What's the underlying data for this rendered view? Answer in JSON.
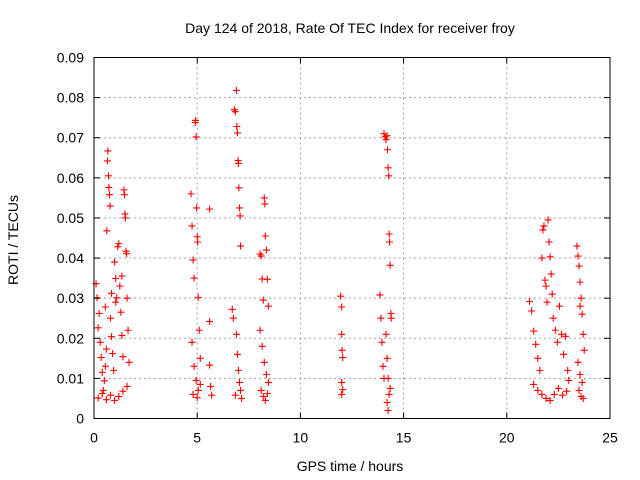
{
  "chart_data": {
    "type": "scatter",
    "title": "Day 124 of 2018, Rate Of TEC Index for receiver froy",
    "xlabel": "GPS time / hours",
    "ylabel": "ROTI / TECUs",
    "xlim": [
      0,
      25
    ],
    "ylim": [
      0,
      0.09
    ],
    "xticks": [
      0,
      5,
      10,
      15,
      20,
      25
    ],
    "xtick_labels": [
      "0",
      "5",
      "10",
      "15",
      "20",
      "25"
    ],
    "yticks": [
      0,
      0.01,
      0.02,
      0.03,
      0.04,
      0.05,
      0.06,
      0.07,
      0.08,
      0.09
    ],
    "ytick_labels": [
      "0",
      "0.01",
      "0.02",
      "0.03",
      "0.04",
      "0.05",
      "0.06",
      "0.07",
      "0.08",
      "0.09"
    ],
    "grid": true,
    "marker": "+",
    "color": "#ff0000",
    "series": [
      {
        "name": "ROTI",
        "points": [
          [
            0.1,
            0.0336
          ],
          [
            0.15,
            0.0301
          ],
          [
            0.2,
            0.0226
          ],
          [
            0.3,
            0.019
          ],
          [
            0.35,
            0.0152
          ],
          [
            0.4,
            0.0115
          ],
          [
            0.45,
            0.007
          ],
          [
            0.5,
            0.0094
          ],
          [
            0.55,
            0.013
          ],
          [
            0.6,
            0.0173
          ],
          [
            0.62,
            0.0468
          ],
          [
            0.65,
            0.0642
          ],
          [
            0.67,
            0.0667
          ],
          [
            0.7,
            0.0605
          ],
          [
            0.72,
            0.0576
          ],
          [
            0.75,
            0.0558
          ],
          [
            0.78,
            0.053
          ],
          [
            0.8,
            0.025
          ],
          [
            0.85,
            0.0204
          ],
          [
            0.9,
            0.0162
          ],
          [
            0.95,
            0.012
          ],
          [
            1.0,
            0.039
          ],
          [
            1.05,
            0.0349
          ],
          [
            1.1,
            0.0301
          ],
          [
            1.15,
            0.0428
          ],
          [
            1.2,
            0.0436
          ],
          [
            1.25,
            0.033
          ],
          [
            1.3,
            0.0265
          ],
          [
            1.35,
            0.0207
          ],
          [
            1.4,
            0.0154
          ],
          [
            1.45,
            0.057
          ],
          [
            1.48,
            0.0558
          ],
          [
            1.5,
            0.051
          ],
          [
            1.52,
            0.05
          ],
          [
            1.55,
            0.0417
          ],
          [
            1.58,
            0.0411
          ],
          [
            1.6,
            0.03
          ],
          [
            1.65,
            0.022
          ],
          [
            1.7,
            0.014
          ],
          [
            0.2,
            0.0051
          ],
          [
            0.4,
            0.0062
          ],
          [
            0.6,
            0.0047
          ],
          [
            0.8,
            0.0058
          ],
          [
            1.0,
            0.0045
          ],
          [
            1.2,
            0.0055
          ],
          [
            1.4,
            0.0068
          ],
          [
            1.6,
            0.008
          ],
          [
            0.25,
            0.0262
          ],
          [
            0.55,
            0.0278
          ],
          [
            0.85,
            0.0312
          ],
          [
            1.05,
            0.029
          ],
          [
            1.35,
            0.0355
          ],
          [
            4.7,
            0.056
          ],
          [
            4.75,
            0.048
          ],
          [
            4.8,
            0.0395
          ],
          [
            4.85,
            0.035
          ],
          [
            4.9,
            0.0738
          ],
          [
            4.92,
            0.0743
          ],
          [
            4.95,
            0.0702
          ],
          [
            4.97,
            0.0525
          ],
          [
            5.0,
            0.0453
          ],
          [
            5.02,
            0.044
          ],
          [
            5.05,
            0.0302
          ],
          [
            5.1,
            0.022
          ],
          [
            5.15,
            0.015
          ],
          [
            4.75,
            0.019
          ],
          [
            4.85,
            0.013
          ],
          [
            4.95,
            0.0095
          ],
          [
            5.05,
            0.007
          ],
          [
            5.15,
            0.0085
          ],
          [
            4.8,
            0.006
          ],
          [
            5.0,
            0.0052
          ],
          [
            5.6,
            0.0522
          ],
          [
            5.6,
            0.0242
          ],
          [
            5.6,
            0.0133
          ],
          [
            5.65,
            0.008
          ],
          [
            5.7,
            0.0058
          ],
          [
            6.7,
            0.0272
          ],
          [
            6.75,
            0.025
          ],
          [
            6.8,
            0.077
          ],
          [
            6.85,
            0.0765
          ],
          [
            6.9,
            0.0818
          ],
          [
            6.92,
            0.0728
          ],
          [
            6.95,
            0.0712
          ],
          [
            6.98,
            0.0643
          ],
          [
            7.0,
            0.0636
          ],
          [
            7.02,
            0.0575
          ],
          [
            7.05,
            0.0525
          ],
          [
            7.08,
            0.0505
          ],
          [
            7.1,
            0.043
          ],
          [
            6.9,
            0.021
          ],
          [
            6.95,
            0.016
          ],
          [
            7.0,
            0.012
          ],
          [
            7.05,
            0.009
          ],
          [
            7.1,
            0.007
          ],
          [
            6.85,
            0.0058
          ],
          [
            7.15,
            0.005
          ],
          [
            8.05,
            0.041
          ],
          [
            8.1,
            0.0405
          ],
          [
            8.15,
            0.0348
          ],
          [
            8.2,
            0.0295
          ],
          [
            8.25,
            0.055
          ],
          [
            8.28,
            0.0535
          ],
          [
            8.3,
            0.0455
          ],
          [
            8.35,
            0.042
          ],
          [
            8.4,
            0.0347
          ],
          [
            8.45,
            0.028
          ],
          [
            8.05,
            0.022
          ],
          [
            8.15,
            0.018
          ],
          [
            8.25,
            0.014
          ],
          [
            8.35,
            0.011
          ],
          [
            8.45,
            0.009
          ],
          [
            8.1,
            0.007
          ],
          [
            8.2,
            0.0055
          ],
          [
            8.3,
            0.0045
          ],
          [
            8.4,
            0.0062
          ],
          [
            11.95,
            0.0305
          ],
          [
            12.0,
            0.0278
          ],
          [
            12.0,
            0.021
          ],
          [
            12.02,
            0.017
          ],
          [
            12.05,
            0.0152
          ],
          [
            12.0,
            0.009
          ],
          [
            12.05,
            0.0072
          ],
          [
            12.0,
            0.006
          ],
          [
            13.85,
            0.0308
          ],
          [
            13.9,
            0.025
          ],
          [
            13.95,
            0.019
          ],
          [
            14.0,
            0.013
          ],
          [
            14.05,
            0.01
          ],
          [
            14.05,
            0.071
          ],
          [
            14.1,
            0.0702
          ],
          [
            14.15,
            0.0695
          ],
          [
            14.2,
            0.0705
          ],
          [
            14.22,
            0.067
          ],
          [
            14.25,
            0.0625
          ],
          [
            14.28,
            0.0605
          ],
          [
            14.3,
            0.046
          ],
          [
            14.32,
            0.044
          ],
          [
            14.35,
            0.0382
          ],
          [
            14.38,
            0.0262
          ],
          [
            14.4,
            0.025
          ],
          [
            14.15,
            0.021
          ],
          [
            14.2,
            0.015
          ],
          [
            14.25,
            0.01
          ],
          [
            14.3,
            0.006
          ],
          [
            14.2,
            0.004
          ],
          [
            14.25,
            0.002
          ],
          [
            14.35,
            0.0075
          ],
          [
            21.1,
            0.0292
          ],
          [
            21.2,
            0.0268
          ],
          [
            21.3,
            0.0218
          ],
          [
            21.4,
            0.0185
          ],
          [
            21.5,
            0.015
          ],
          [
            21.6,
            0.012
          ],
          [
            21.7,
            0.04
          ],
          [
            21.75,
            0.047
          ],
          [
            21.8,
            0.048
          ],
          [
            21.85,
            0.0345
          ],
          [
            21.9,
            0.033
          ],
          [
            21.95,
            0.029
          ],
          [
            22.0,
            0.0495
          ],
          [
            22.05,
            0.044
          ],
          [
            22.1,
            0.0403
          ],
          [
            22.15,
            0.036
          ],
          [
            22.2,
            0.031
          ],
          [
            22.25,
            0.025
          ],
          [
            22.35,
            0.022
          ],
          [
            22.45,
            0.019
          ],
          [
            22.55,
            0.028
          ],
          [
            22.65,
            0.021
          ],
          [
            22.75,
            0.016
          ],
          [
            22.85,
            0.0205
          ],
          [
            22.95,
            0.012
          ],
          [
            21.3,
            0.0085
          ],
          [
            21.5,
            0.007
          ],
          [
            21.7,
            0.006
          ],
          [
            21.9,
            0.005
          ],
          [
            22.1,
            0.0045
          ],
          [
            22.3,
            0.006
          ],
          [
            22.5,
            0.0075
          ],
          [
            22.7,
            0.0058
          ],
          [
            22.9,
            0.0068
          ],
          [
            23.0,
            0.0095
          ],
          [
            23.4,
            0.043
          ],
          [
            23.45,
            0.0405
          ],
          [
            23.5,
            0.038
          ],
          [
            23.55,
            0.034
          ],
          [
            23.6,
            0.03
          ],
          [
            23.65,
            0.026
          ],
          [
            23.7,
            0.021
          ],
          [
            23.75,
            0.017
          ],
          [
            23.45,
            0.014
          ],
          [
            23.55,
            0.011
          ],
          [
            23.65,
            0.009
          ],
          [
            23.5,
            0.007
          ],
          [
            23.6,
            0.0055
          ],
          [
            23.7,
            0.005
          ],
          [
            23.55,
            0.028
          ]
        ]
      }
    ]
  }
}
